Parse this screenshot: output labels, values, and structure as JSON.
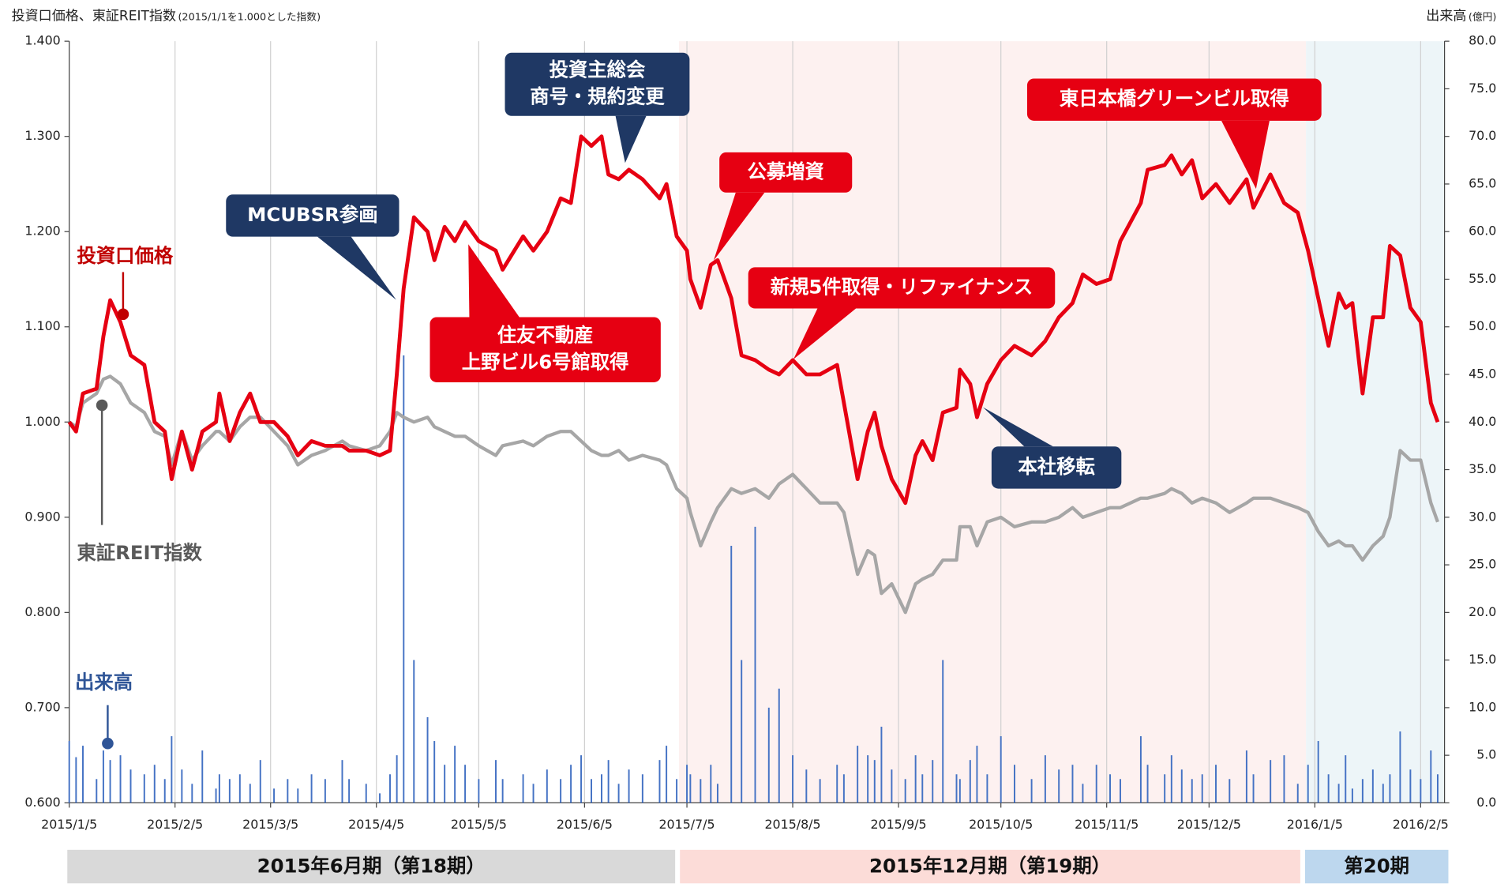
{
  "chart_data": {
    "type": "line",
    "title": "投資口価格、東証REIT指数",
    "subtitle": "(2015/1/1を1.000とした指数)",
    "y2_label": "出来高",
    "y2_unit": "(億円)",
    "x": [
      "2015/1/5",
      "2015/1/7",
      "2015/1/9",
      "2015/1/13",
      "2015/1/15",
      "2015/1/17",
      "2015/1/20",
      "2015/1/23",
      "2015/1/27",
      "2015/1/30",
      "2015/2/2",
      "2015/2/4",
      "2015/2/7",
      "2015/2/10",
      "2015/2/13",
      "2015/2/17",
      "2015/2/18",
      "2015/2/21",
      "2015/2/24",
      "2015/2/27",
      "2015/3/2",
      "2015/3/6",
      "2015/3/10",
      "2015/3/13",
      "2015/3/17",
      "2015/3/21",
      "2015/3/26",
      "2015/3/28",
      "2015/4/2",
      "2015/4/6",
      "2015/4/9",
      "2015/4/11",
      "2015/4/13",
      "2015/4/16",
      "2015/4/20",
      "2015/4/22",
      "2015/4/25",
      "2015/4/28",
      "2015/5/1",
      "2015/5/5",
      "2015/5/10",
      "2015/5/12",
      "2015/5/18",
      "2015/5/21",
      "2015/5/25",
      "2015/5/29",
      "2015/6/1",
      "2015/6/4",
      "2015/6/7",
      "2015/6/10",
      "2015/6/12",
      "2015/6/15",
      "2015/6/18",
      "2015/6/22",
      "2015/6/27",
      "2015/6/29",
      "2015/7/2",
      "2015/7/5",
      "2015/7/6",
      "2015/7/9",
      "2015/7/12",
      "2015/7/14",
      "2015/7/18",
      "2015/7/21",
      "2015/7/25",
      "2015/7/29",
      "2015/8/1",
      "2015/8/5",
      "2015/8/9",
      "2015/8/13",
      "2015/8/18",
      "2015/8/20",
      "2015/8/24",
      "2015/8/27",
      "2015/8/29",
      "2015/8/31",
      "2015/9/3",
      "2015/9/7",
      "2015/9/10",
      "2015/9/12",
      "2015/9/15",
      "2015/9/18",
      "2015/9/22",
      "2015/9/23",
      "2015/9/26",
      "2015/9/28",
      "2015/10/1",
      "2015/10/5",
      "2015/10/9",
      "2015/10/14",
      "2015/10/18",
      "2015/10/22",
      "2015/10/26",
      "2015/10/29",
      "2015/11/2",
      "2015/11/6",
      "2015/11/9",
      "2015/11/15",
      "2015/11/17",
      "2015/11/22",
      "2015/11/24",
      "2015/11/27",
      "2015/11/30",
      "2015/12/3",
      "2015/12/7",
      "2015/12/11",
      "2015/12/16",
      "2015/12/18",
      "2015/12/23",
      "2015/12/27",
      "2015/12/31",
      "2016/1/3",
      "2016/1/6",
      "2016/1/9",
      "2016/1/12",
      "2016/1/14",
      "2016/1/16",
      "2016/1/19",
      "2016/1/22",
      "2016/1/25",
      "2016/1/27",
      "2016/1/30",
      "2016/2/2",
      "2016/2/5",
      "2016/2/8",
      "2016/2/10"
    ],
    "series": [
      {
        "name": "投資口価格",
        "color": "#e60012",
        "label_color": "#c00000",
        "values": [
          1.0,
          0.99,
          1.03,
          1.035,
          1.09,
          1.128,
          1.105,
          1.07,
          1.06,
          1.0,
          0.99,
          0.94,
          0.99,
          0.95,
          0.99,
          1.0,
          1.03,
          0.98,
          1.01,
          1.03,
          1.0,
          1.0,
          0.985,
          0.965,
          0.98,
          0.975,
          0.975,
          0.97,
          0.97,
          0.965,
          0.97,
          1.05,
          1.14,
          1.215,
          1.2,
          1.17,
          1.205,
          1.19,
          1.21,
          1.19,
          1.18,
          1.16,
          1.195,
          1.18,
          1.2,
          1.235,
          1.23,
          1.3,
          1.29,
          1.3,
          1.26,
          1.255,
          1.265,
          1.255,
          1.235,
          1.25,
          1.195,
          1.18,
          1.15,
          1.12,
          1.165,
          1.17,
          1.13,
          1.07,
          1.065,
          1.055,
          1.05,
          1.065,
          1.05,
          1.05,
          1.06,
          1.02,
          0.94,
          0.99,
          1.01,
          0.975,
          0.94,
          0.915,
          0.965,
          0.98,
          0.96,
          1.01,
          1.015,
          1.055,
          1.04,
          1.005,
          1.04,
          1.065,
          1.08,
          1.07,
          1.085,
          1.11,
          1.125,
          1.155,
          1.145,
          1.15,
          1.19,
          1.23,
          1.265,
          1.27,
          1.28,
          1.26,
          1.275,
          1.235,
          1.25,
          1.23,
          1.255,
          1.225,
          1.26,
          1.23,
          1.22,
          1.18,
          1.13,
          1.08,
          1.135,
          1.12,
          1.125,
          1.03,
          1.11,
          1.11,
          1.185,
          1.175,
          1.12,
          1.105,
          1.02,
          1.0
        ]
      },
      {
        "name": "東証REIT指数",
        "color": "#a6a6a6",
        "label_color": "#595959",
        "values": [
          1.0,
          0.995,
          1.02,
          1.03,
          1.045,
          1.048,
          1.04,
          1.02,
          1.01,
          0.99,
          0.985,
          0.955,
          0.99,
          0.96,
          0.975,
          0.99,
          0.99,
          0.98,
          0.995,
          1.005,
          1.005,
          0.99,
          0.975,
          0.955,
          0.965,
          0.97,
          0.98,
          0.975,
          0.97,
          0.975,
          0.99,
          1.01,
          1.005,
          1.0,
          1.005,
          0.995,
          0.99,
          0.985,
          0.985,
          0.975,
          0.965,
          0.975,
          0.98,
          0.975,
          0.985,
          0.99,
          0.99,
          0.98,
          0.97,
          0.965,
          0.965,
          0.97,
          0.96,
          0.965,
          0.96,
          0.955,
          0.93,
          0.92,
          0.905,
          0.87,
          0.895,
          0.91,
          0.93,
          0.925,
          0.93,
          0.92,
          0.935,
          0.945,
          0.93,
          0.915,
          0.915,
          0.905,
          0.84,
          0.865,
          0.86,
          0.82,
          0.83,
          0.8,
          0.83,
          0.835,
          0.84,
          0.855,
          0.855,
          0.89,
          0.89,
          0.87,
          0.895,
          0.9,
          0.89,
          0.895,
          0.895,
          0.9,
          0.91,
          0.9,
          0.905,
          0.91,
          0.91,
          0.92,
          0.92,
          0.925,
          0.93,
          0.925,
          0.915,
          0.92,
          0.915,
          0.905,
          0.915,
          0.92,
          0.92,
          0.915,
          0.91,
          0.905,
          0.885,
          0.87,
          0.875,
          0.87,
          0.87,
          0.855,
          0.87,
          0.88,
          0.9,
          0.97,
          0.96,
          0.96,
          0.915,
          0.895
        ]
      },
      {
        "name": "出来高",
        "color": "#4472c4",
        "label_color": "#2f5597",
        "axis": "y2",
        "values": [
          6.5,
          4.8,
          6.0,
          2.5,
          5.5,
          4.5,
          5.0,
          3.5,
          3.0,
          4.0,
          2.5,
          7.0,
          3.5,
          2.0,
          5.5,
          1.5,
          3.0,
          2.5,
          3.0,
          2.0,
          4.5,
          1.5,
          2.5,
          1.5,
          3.0,
          2.5,
          4.5,
          2.5,
          2.0,
          1.0,
          3.0,
          5.0,
          47.0,
          15.0,
          9.0,
          6.5,
          4.0,
          6.0,
          4.0,
          2.5,
          4.5,
          2.5,
          3.0,
          2.0,
          3.5,
          2.5,
          4.0,
          5.0,
          2.5,
          3.0,
          4.5,
          2.0,
          3.5,
          3.0,
          4.5,
          6.0,
          2.5,
          4.0,
          3.0,
          2.5,
          4.0,
          2.0,
          27.0,
          15.0,
          29.0,
          10.0,
          12.0,
          5.0,
          3.5,
          2.5,
          4.0,
          3.0,
          6.0,
          5.0,
          4.5,
          8.0,
          3.5,
          2.5,
          5.0,
          3.0,
          4.5,
          15.0,
          3.0,
          2.5,
          4.5,
          6.0,
          3.0,
          7.0,
          4.0,
          2.5,
          5.0,
          3.5,
          4.0,
          2.0,
          4.0,
          3.0,
          2.5,
          7.0,
          4.0,
          3.0,
          5.0,
          3.5,
          2.5,
          3.0,
          4.0,
          2.5,
          5.5,
          3.0,
          4.5,
          5.0,
          2.0,
          4.0,
          6.5,
          3.0,
          2.0,
          5.0,
          1.5,
          2.5,
          3.5,
          2.0,
          3.0,
          7.5,
          3.5,
          2.5,
          5.5,
          3.0
        ]
      }
    ],
    "xlim": [
      "2015/1/5",
      "2016/2/12"
    ],
    "xticks": [
      "2015/1/5",
      "2015/2/5",
      "2015/3/5",
      "2015/4/5",
      "2015/5/5",
      "2015/6/5",
      "2015/7/5",
      "2015/8/5",
      "2015/9/5",
      "2015/10/5",
      "2015/11/5",
      "2015/12/5",
      "2016/1/5",
      "2016/2/5"
    ],
    "ylim": [
      0.6,
      1.4
    ],
    "yticks": [
      {
        "value": 0.6,
        "label": "0.600"
      },
      {
        "value": 0.7,
        "label": "0.700"
      },
      {
        "value": 0.8,
        "label": "0.800"
      },
      {
        "value": 0.9,
        "label": "0.900"
      },
      {
        "value": 1.0,
        "label": "1.000"
      },
      {
        "value": 1.1,
        "label": "1.100"
      },
      {
        "value": 1.2,
        "label": "1.200"
      },
      {
        "value": 1.3,
        "label": "1.300"
      },
      {
        "value": 1.4,
        "label": "1.400"
      }
    ],
    "y2lim": [
      0,
      80
    ],
    "y2ticks": [
      {
        "value": 0,
        "label": "0.0"
      },
      {
        "value": 5,
        "label": "5.0"
      },
      {
        "value": 10,
        "label": "10.0"
      },
      {
        "value": 15,
        "label": "15.0"
      },
      {
        "value": 20,
        "label": "20.0"
      },
      {
        "value": 25,
        "label": "25.0"
      },
      {
        "value": 30,
        "label": "30.0"
      },
      {
        "value": 35,
        "label": "35.0"
      },
      {
        "value": 40,
        "label": "40.0"
      },
      {
        "value": 45,
        "label": "45.0"
      },
      {
        "value": 50,
        "label": "50.0"
      },
      {
        "value": 55,
        "label": "55.0"
      },
      {
        "value": 60,
        "label": "60.0"
      },
      {
        "value": 65,
        "label": "65.0"
      },
      {
        "value": 70,
        "label": "70.0"
      },
      {
        "value": 75,
        "label": "75.0"
      },
      {
        "value": 80,
        "label": "80.0"
      }
    ],
    "grid": true,
    "annotations": [
      {
        "text": [
          "MCUBSR参画"
        ],
        "color": "#1f3864"
      },
      {
        "text": [
          "住友不動産",
          "上野ビル6号館取得"
        ],
        "color": "#e60012"
      },
      {
        "text": [
          "投資主総会",
          "商号・規約変更"
        ],
        "color": "#1f3864"
      },
      {
        "text": [
          "公募増資"
        ],
        "color": "#e60012"
      },
      {
        "text": [
          "新規5件取得・リファイナンス"
        ],
        "color": "#e60012"
      },
      {
        "text": [
          "東日本橋グリーンビル取得"
        ],
        "color": "#e60012"
      },
      {
        "text": [
          "本社移転"
        ],
        "color": "#1f3864"
      }
    ],
    "periods": [
      {
        "label": "2015年6月期（第18期）",
        "color": "#d9d9d9"
      },
      {
        "label": "2015年12月期（第19期）",
        "color": "#fcdcd8"
      },
      {
        "label": "第20期",
        "color": "#bdd7ee"
      }
    ]
  }
}
